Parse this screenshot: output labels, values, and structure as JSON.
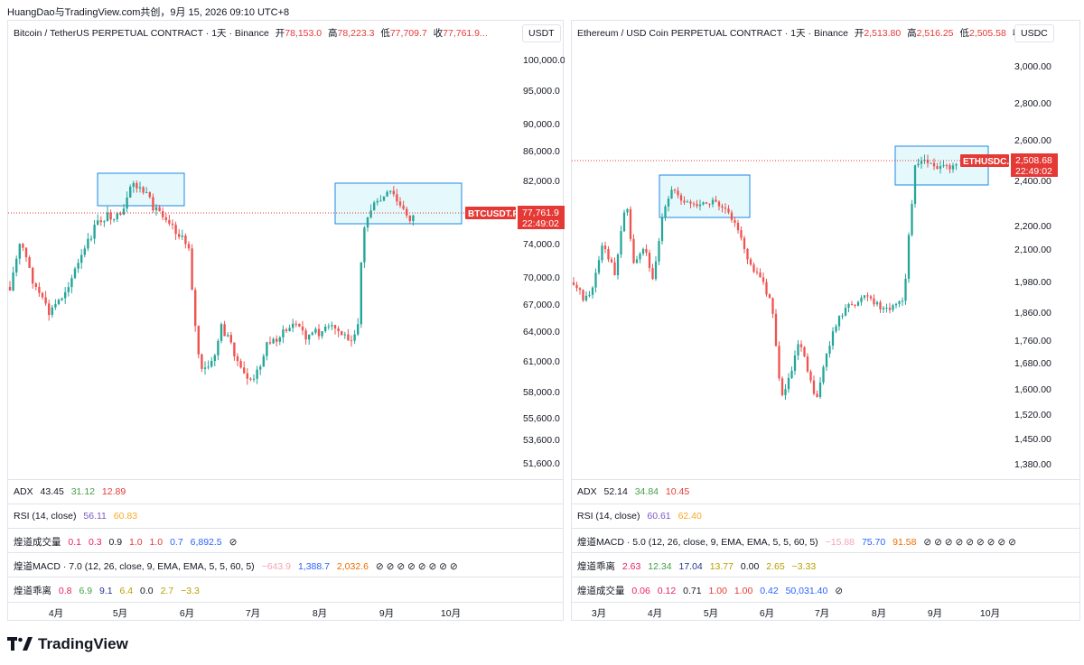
{
  "topline": "HuangDao与TradingView.com共创，9月 15, 2026 09:10 UTC+8",
  "left": {
    "title": "Bitcoin / TetherUS PERPETUAL CONTRACT · 1天 · Binance",
    "open_lbl": "开",
    "open": "78,153.0",
    "high_lbl": "高",
    "high": "78,223.3",
    "low_lbl": "低",
    "low": "77,709.7",
    "close_lbl": "收",
    "close": "77,761.9...",
    "currency": "USDT",
    "price_ticks": [
      "100,000.0",
      "95,000.0",
      "90,000.0",
      "86,000.0",
      "82,000.0",
      "74,000.0",
      "70,000.0",
      "67,000.0",
      "64,000.0",
      "61,000.0",
      "58,000.0",
      "55,600.0",
      "53,600.0",
      "51,600.0"
    ],
    "last_price": "77,761.9",
    "countdown": "22:49:02",
    "symbol_tag": "BTCUSDT.P",
    "months": [
      "4月",
      "5月",
      "6月",
      "7月",
      "8月",
      "9月",
      "10月"
    ],
    "adx": {
      "name": "ADX",
      "v1": "43.45",
      "v2": "31.12",
      "v3": "12.89"
    },
    "rsi": {
      "name": "RSI (14, close)",
      "v1": "56.11",
      "v2": "60.83"
    },
    "vol": {
      "name": "煌道成交量",
      "v1": "0.1",
      "v2": "0.3",
      "v3": "0.9",
      "v4": "1.0",
      "v5": "1.0",
      "v6": "0.7",
      "v7": "6,892.5"
    },
    "macd": {
      "name": "煌道MACD · 7.0 (12, 26, close, 9, EMA, EMA, 5, 5, 60, 5)",
      "v1": "−643.9",
      "v2": "1,388.7",
      "v3": "2,032.6"
    },
    "dev": {
      "name": "煌道乖离",
      "v1": "0.8",
      "v2": "6.9",
      "v3": "9.1",
      "v4": "6.4",
      "v5": "0.0",
      "v6": "2.7",
      "v7": "−3.3"
    }
  },
  "right": {
    "title": "Ethereum / USD Coin PERPETUAL CONTRACT · 1天 · Binance",
    "open_lbl": "开",
    "open": "2,513.80",
    "high_lbl": "高",
    "high": "2,516.25",
    "low_lbl": "低",
    "low": "2,505.58",
    "close_lbl": "收",
    "close": "...",
    "currency": "USDC",
    "price_ticks": [
      "3,000.00",
      "2,800.00",
      "2,600.00",
      "2,400.00",
      "2,200.00",
      "2,100.00",
      "1,980.00",
      "1,860.00",
      "1,760.00",
      "1,680.00",
      "1,600.00",
      "1,520.00",
      "1,450.00",
      "1,380.00"
    ],
    "last_price": "2,508.68",
    "countdown": "22:49:02",
    "symbol_tag": "ETHUSDC.P",
    "months": [
      "3月",
      "4月",
      "5月",
      "6月",
      "7月",
      "8月",
      "9月",
      "10月"
    ],
    "adx": {
      "name": "ADX",
      "v1": "52.14",
      "v2": "34.84",
      "v3": "10.45"
    },
    "rsi": {
      "name": "RSI (14, close)",
      "v1": "60.61",
      "v2": "62.40"
    },
    "macd": {
      "name": "煌道MACD · 5.0 (12, 26, close, 9, EMA, EMA, 5, 5, 60, 5)",
      "v1": "−15.88",
      "v2": "75.70",
      "v3": "91.58"
    },
    "dev": {
      "name": "煌道乖离",
      "v1": "2.63",
      "v2": "12.34",
      "v3": "17.04",
      "v4": "13.77",
      "v5": "0.00",
      "v6": "2.65",
      "v7": "−3.33"
    },
    "vol": {
      "name": "煌道成交量",
      "v1": "0.06",
      "v2": "0.12",
      "v3": "0.71",
      "v4": "1.00",
      "v5": "1.00",
      "v6": "0.42",
      "v7": "50,031.40"
    }
  },
  "logo": "TradingView",
  "colors": {
    "up": "#26a69a",
    "down": "#ef5350",
    "accent": "#e53935",
    "box": "#1e88e5"
  }
}
